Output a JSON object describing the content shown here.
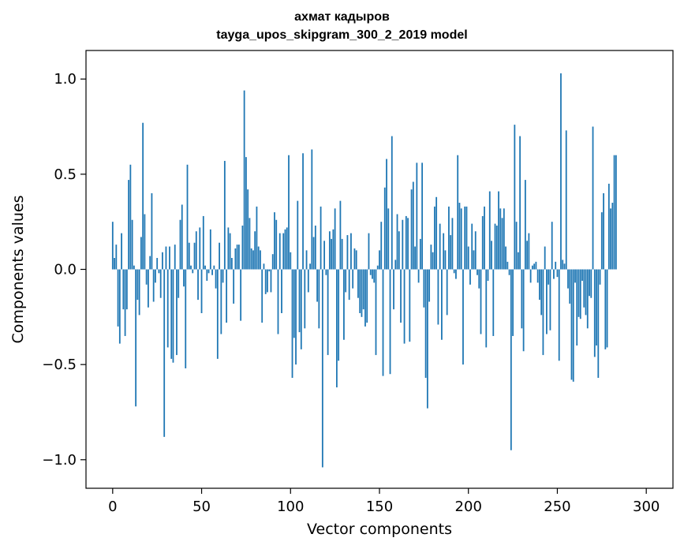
{
  "chart_data": {
    "type": "bar",
    "title": [
      "ахмат кадыров",
      "tayga_upos_skipgram_300_2_2019 model"
    ],
    "xlabel": "Vector components",
    "ylabel": "Components values",
    "xlim": [
      -15,
      315
    ],
    "ylim": [
      -1.15,
      1.15
    ],
    "x_ticks": [
      0,
      50,
      100,
      150,
      200,
      250,
      300
    ],
    "x_tick_labels": [
      "0",
      "50",
      "100",
      "150",
      "200",
      "250",
      "300"
    ],
    "y_ticks": [
      1.0,
      0.5,
      0.0,
      -0.5,
      -1.0
    ],
    "y_tick_labels": [
      "1.0",
      "0.5",
      "0.0",
      "−0.5",
      "−1.0"
    ],
    "bar_color": "#1f77b4",
    "values": [
      0.25,
      0.06,
      0.13,
      -0.3,
      -0.39,
      0.19,
      -0.21,
      -0.35,
      -0.21,
      0.47,
      0.55,
      0.26,
      0.02,
      -0.72,
      -0.16,
      -0.24,
      0.17,
      0.77,
      0.29,
      -0.08,
      -0.2,
      0.07,
      0.4,
      -0.17,
      -0.07,
      0.06,
      -0.02,
      -0.15,
      0.09,
      -0.88,
      0.12,
      -0.41,
      0.12,
      -0.47,
      -0.49,
      0.13,
      -0.45,
      -0.15,
      0.26,
      0.34,
      -0.09,
      -0.52,
      0.55,
      0.14,
      0.02,
      -0.02,
      0.14,
      0.2,
      -0.16,
      0.22,
      -0.23,
      0.28,
      0.02,
      -0.06,
      -0.02,
      0.21,
      -0.03,
      0.02,
      -0.1,
      -0.47,
      0.14,
      -0.34,
      -0.07,
      0.57,
      -0.28,
      0.22,
      0.19,
      0.06,
      -0.18,
      0.11,
      0.13,
      0.13,
      -0.27,
      0.23,
      0.94,
      0.59,
      0.42,
      0.27,
      0.11,
      0.1,
      0.2,
      0.33,
      0.12,
      0.1,
      -0.28,
      0.03,
      -0.13,
      -0.12,
      -0.01,
      -0.12,
      0.08,
      0.3,
      0.26,
      -0.34,
      0.19,
      -0.23,
      0.19,
      0.21,
      0.22,
      0.6,
      0.09,
      -0.57,
      -0.36,
      -0.5,
      0.36,
      -0.33,
      -0.42,
      0.61,
      -0.31,
      0.1,
      -0.12,
      0.03,
      0.63,
      0.17,
      0.23,
      -0.17,
      -0.31,
      0.33,
      -1.04,
      0.15,
      -0.03,
      -0.45,
      0.2,
      0.16,
      0.21,
      0.32,
      -0.62,
      -0.48,
      0.36,
      0.16,
      -0.37,
      -0.12,
      0.18,
      -0.16,
      0.19,
      -0.1,
      0.11,
      0.1,
      -0.15,
      -0.23,
      -0.25,
      -0.21,
      -0.3,
      -0.28,
      0.19,
      -0.03,
      -0.05,
      -0.07,
      -0.45,
      0.02,
      0.1,
      0.25,
      -0.56,
      0.43,
      0.58,
      0.32,
      -0.55,
      0.7,
      -0.21,
      0.05,
      0.29,
      0.2,
      -0.28,
      0.26,
      -0.39,
      0.28,
      0.27,
      -0.38,
      0.42,
      0.46,
      0.12,
      0.56,
      -0.07,
      0.16,
      0.56,
      -0.2,
      -0.57,
      -0.73,
      -0.17,
      0.13,
      0.09,
      0.33,
      0.38,
      -0.29,
      0.24,
      -0.37,
      0.19,
      0.1,
      -0.24,
      0.33,
      0.18,
      0.27,
      -0.02,
      -0.05,
      0.6,
      0.35,
      0.32,
      -0.5,
      0.33,
      0.33,
      0.12,
      -0.08,
      0.24,
      0.1,
      0.2,
      -0.03,
      -0.1,
      -0.34,
      0.28,
      0.33,
      -0.41,
      -0.06,
      0.41,
      0.15,
      -0.35,
      0.24,
      0.23,
      0.41,
      0.32,
      0.27,
      0.32,
      0.12,
      0.04,
      -0.03,
      -0.95,
      -0.35,
      0.76,
      0.25,
      0.09,
      0.7,
      -0.31,
      -0.43,
      0.47,
      0.15,
      0.19,
      -0.07,
      0.02,
      0.03,
      0.04,
      -0.07,
      -0.16,
      -0.24,
      -0.45,
      0.12,
      -0.34,
      -0.08,
      -0.32,
      0.25,
      -0.05,
      0.04,
      -0.04,
      -0.48,
      1.03,
      0.05,
      0.03,
      0.73,
      -0.1,
      -0.18,
      -0.58,
      -0.59,
      -0.07,
      -0.4,
      -0.25,
      -0.26,
      -0.06,
      -0.2,
      -0.24,
      -0.31,
      -0.14,
      -0.15,
      0.75,
      -0.46,
      -0.4,
      -0.57,
      -0.08,
      0.3,
      0.4,
      -0.42,
      -0.41,
      0.45,
      0.32,
      0.35,
      0.6,
      0.6
    ]
  }
}
